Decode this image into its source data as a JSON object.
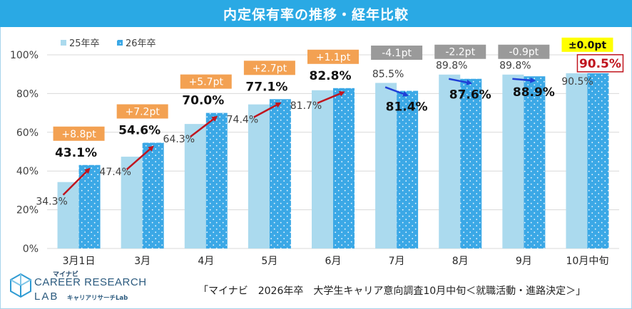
{
  "title": "内定保有率の推移・経年比較",
  "legend": [
    {
      "label": "25年卒",
      "color": "#abdaee"
    },
    {
      "label": "26年卒",
      "color": "#3ba8e6"
    }
  ],
  "source": "「マイナビ　2026年卒　大学生キャリア意向調査10月中旬＜就職活動・進路決定＞」",
  "logo": {
    "small": "マイナビ",
    "main": "CAREER RESEARCH",
    "lab": "LAB",
    "sub": "キャリアリサーチLab"
  },
  "colors": {
    "title_bg": "#2aa9e4",
    "orange": "#f3a152",
    "gray": "#9a9a9a",
    "yellow": "#ffff00",
    "red": "#c0151e",
    "blue_arrow": "#1f3fd6"
  },
  "chart_data": {
    "type": "bar",
    "title": "内定保有率の推移・経年比較",
    "categories": [
      "3月1日",
      "3月",
      "4月",
      "5月",
      "6月",
      "7月",
      "8月",
      "9月",
      "10月中旬"
    ],
    "series": [
      {
        "name": "25年卒",
        "values": [
          34.3,
          47.4,
          64.3,
          74.4,
          81.7,
          85.5,
          89.8,
          89.8,
          90.5
        ]
      },
      {
        "name": "26年卒",
        "values": [
          43.1,
          54.6,
          70.0,
          77.1,
          82.8,
          81.4,
          87.6,
          88.9,
          90.5
        ]
      }
    ],
    "label_25": [
      "34.3%",
      "47.4%",
      "64.3%",
      "74.4%",
      "81.7%",
      "85.5%",
      "89.8%",
      "89.8%",
      "90.5%"
    ],
    "label_26": [
      "43.1%",
      "54.6%",
      "70.0%",
      "77.1%",
      "82.8%",
      "81.4%",
      "87.6%",
      "88.9%",
      "90.5%"
    ],
    "diffs": [
      "+8.8pt",
      "+7.2pt",
      "+5.7pt",
      "+2.7pt",
      "+1.1pt",
      "-4.1pt",
      "-2.2pt",
      "-0.9pt",
      "±0.0pt"
    ],
    "diff_kind": [
      "up",
      "up",
      "up",
      "up",
      "up",
      "down",
      "down",
      "down",
      "flat"
    ],
    "ytick_labels": [
      "0%",
      "20%",
      "40%",
      "60%",
      "80%",
      "100%"
    ],
    "ylim": [
      0,
      100
    ],
    "grid": true,
    "legend_position": "top-left"
  }
}
